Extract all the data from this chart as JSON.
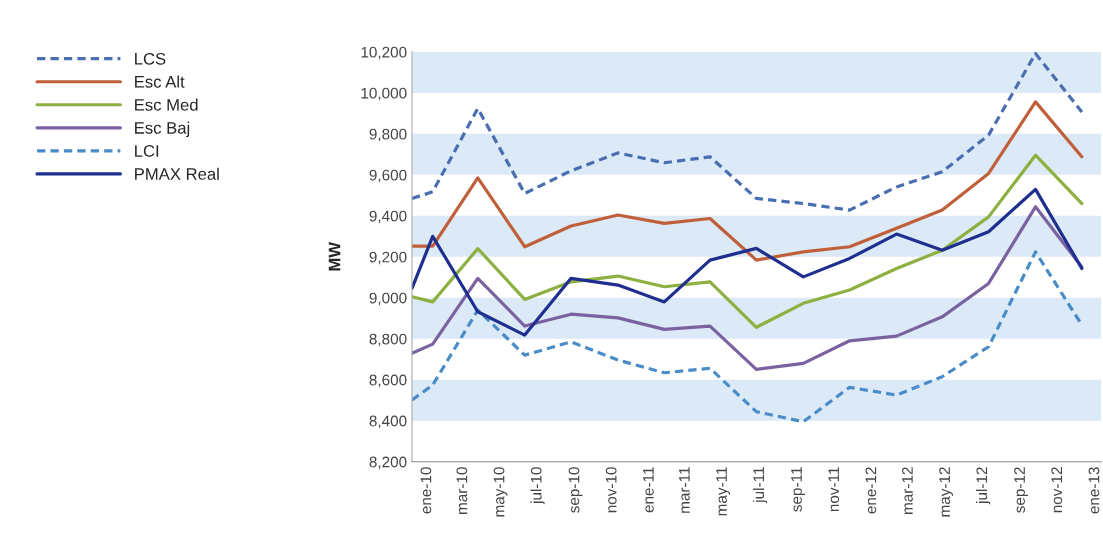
{
  "chart_data": {
    "type": "line",
    "ylabel": "MW",
    "x": [
      "2009-12-07",
      "2010-01-10",
      "2010-03-25",
      "2010-06-10",
      "2010-08-25",
      "2010-11-10",
      "2011-01-25",
      "2011-04-10",
      "2011-06-25",
      "2011-09-10",
      "2011-11-25",
      "2012-02-10",
      "2012-04-25",
      "2012-07-10",
      "2012-09-25",
      "2012-12-10"
    ],
    "xlim": [
      "2009-12-07",
      "2013-01-11"
    ],
    "xticks": [
      {
        "value": "2010-01",
        "label": "ene-10"
      },
      {
        "value": "2010-03",
        "label": "mar-10"
      },
      {
        "value": "2010-05",
        "label": "may-10"
      },
      {
        "value": "2010-07",
        "label": "jul-10"
      },
      {
        "value": "2010-09",
        "label": "sep-10"
      },
      {
        "value": "2010-11",
        "label": "nov-10"
      },
      {
        "value": "2011-01",
        "label": "ene-11"
      },
      {
        "value": "2011-03",
        "label": "mar-11"
      },
      {
        "value": "2011-05",
        "label": "may-11"
      },
      {
        "value": "2011-07",
        "label": "jul-11"
      },
      {
        "value": "2011-09",
        "label": "sep-11"
      },
      {
        "value": "2011-11",
        "label": "nov-11"
      },
      {
        "value": "2012-01",
        "label": "ene-12"
      },
      {
        "value": "2012-03",
        "label": "mar-12"
      },
      {
        "value": "2012-05",
        "label": "may-12"
      },
      {
        "value": "2012-07",
        "label": "jul-12"
      },
      {
        "value": "2012-09",
        "label": "sep-12"
      },
      {
        "value": "2012-11",
        "label": "nov-12"
      },
      {
        "value": "2013-01",
        "label": "ene-13"
      }
    ],
    "ylim": [
      8200,
      10200
    ],
    "yticks": [
      {
        "value": 8200,
        "label": "8,200"
      },
      {
        "value": 8400,
        "label": "8,400"
      },
      {
        "value": 8600,
        "label": "8,600"
      },
      {
        "value": 8800,
        "label": "8,800"
      },
      {
        "value": 9000,
        "label": "9,000"
      },
      {
        "value": 9200,
        "label": "9,200"
      },
      {
        "value": 9400,
        "label": "9,400"
      },
      {
        "value": 9600,
        "label": "9,600"
      },
      {
        "value": 9800,
        "label": "9,800"
      },
      {
        "value": 10000,
        "label": "10,000"
      },
      {
        "value": 10200,
        "label": "10,200"
      }
    ],
    "bands": [
      {
        "axis": "y",
        "from": 10000,
        "to": 10200,
        "color": "#dceaf7"
      },
      {
        "axis": "y",
        "from": 9600,
        "to": 9800,
        "color": "#dceaf7"
      },
      {
        "axis": "y",
        "from": 9200,
        "to": 9400,
        "color": "#dceaf7"
      },
      {
        "axis": "y",
        "from": 8800,
        "to": 9000,
        "color": "#dceaf7"
      },
      {
        "axis": "y",
        "from": 8400,
        "to": 8600,
        "color": "#dceaf7"
      }
    ],
    "grid": false,
    "legend": "left",
    "marker": "none",
    "series": [
      {
        "name": "LCS",
        "color": "#4a6fb0",
        "line_style": "dashed",
        "values": [
          9485,
          9517,
          9924,
          9509,
          9620,
          9707,
          9659,
          9688,
          9485,
          9460,
          9428,
          9541,
          9615,
          9794,
          10192,
          9907
        ]
      },
      {
        "name": "Esc Alt",
        "color": "#c0603a",
        "line_style": "solid",
        "values": [
          9252,
          9252,
          9585,
          9249,
          9350,
          9404,
          9363,
          9387,
          9184,
          9224,
          9249,
          9339,
          9428,
          9607,
          9956,
          9688
        ]
      },
      {
        "name": "Esc Med",
        "color": "#8db040",
        "line_style": "solid",
        "values": [
          9005,
          8980,
          9240,
          8992,
          9078,
          9106,
          9054,
          9078,
          8856,
          8973,
          9038,
          9143,
          9232,
          9395,
          9696,
          9460
        ]
      },
      {
        "name": "Esc Baj",
        "color": "#7a62a0",
        "line_style": "solid",
        "values": [
          8729,
          8774,
          9095,
          8862,
          8920,
          8902,
          8846,
          8862,
          8651,
          8680,
          8790,
          8813,
          8907,
          9070,
          9444,
          9150
        ]
      },
      {
        "name": "LCI",
        "color": "#4a8cc8",
        "line_style": "dashed",
        "values": [
          8501,
          8574,
          8940,
          8720,
          8785,
          8696,
          8634,
          8656,
          8444,
          8395,
          8563,
          8525,
          8615,
          8761,
          9224,
          8867
        ]
      },
      {
        "name": "PMAX Real",
        "color": "#1f2f8f",
        "line_style": "solid",
        "values": [
          9046,
          9300,
          8932,
          8818,
          9095,
          9062,
          8980,
          9184,
          9241,
          9102,
          9192,
          9311,
          9232,
          9322,
          9529,
          9143
        ]
      }
    ]
  }
}
